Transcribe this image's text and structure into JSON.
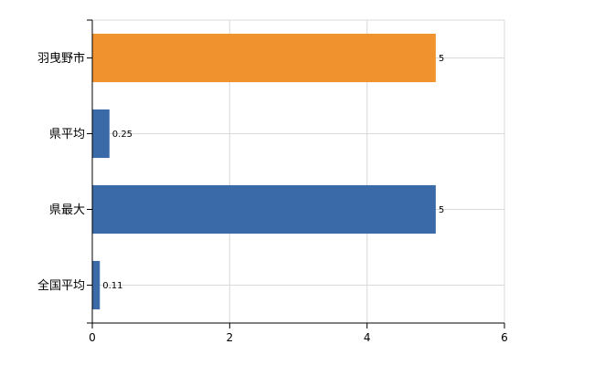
{
  "chart_data": {
    "type": "bar",
    "orientation": "horizontal",
    "title": "",
    "xlabel": "",
    "ylabel": "",
    "categories": [
      "羽曳野市",
      "県平均",
      "県最大",
      "全国平均"
    ],
    "values": [
      5,
      0.25,
      5,
      0.11
    ],
    "value_labels": [
      "5",
      "0.25",
      "5",
      "0.11"
    ],
    "bar_colors": [
      "#F0922D",
      "#3A6AA8",
      "#3A6AA8",
      "#3A6AA8"
    ],
    "xlim": [
      0,
      6
    ],
    "xticks": [
      0,
      2,
      4,
      6
    ],
    "xtick_labels": [
      "0",
      "2",
      "4",
      "6"
    ],
    "grid": true,
    "legend": "none"
  }
}
